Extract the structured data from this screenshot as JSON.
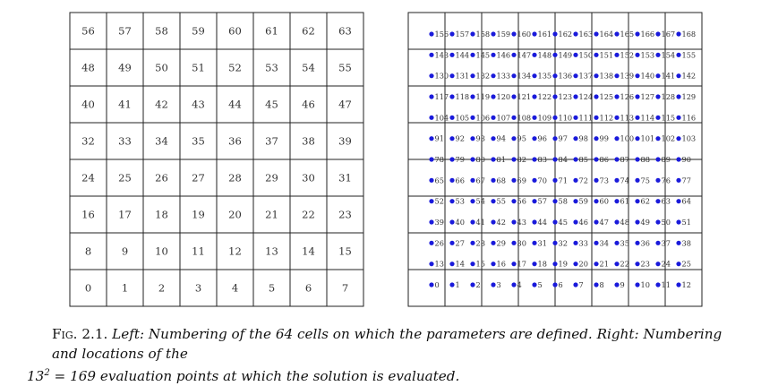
{
  "left_grid": {
    "rows": 8,
    "cols": 8,
    "labels": [
      [
        "56",
        "57",
        "58",
        "59",
        "60",
        "61",
        "62",
        "63"
      ],
      [
        "48",
        "49",
        "50",
        "51",
        "52",
        "53",
        "54",
        "55"
      ],
      [
        "40",
        "41",
        "42",
        "43",
        "44",
        "45",
        "46",
        "47"
      ],
      [
        "32",
        "33",
        "34",
        "35",
        "36",
        "37",
        "38",
        "39"
      ],
      [
        "24",
        "25",
        "26",
        "27",
        "28",
        "29",
        "30",
        "31"
      ],
      [
        "16",
        "17",
        "18",
        "19",
        "20",
        "21",
        "22",
        "23"
      ],
      [
        "8",
        "9",
        "10",
        "11",
        "12",
        "13",
        "14",
        "15"
      ],
      [
        "0",
        "1",
        "2",
        "3",
        "4",
        "5",
        "6",
        "7"
      ]
    ]
  },
  "right_grid": {
    "cells": 8,
    "points_per_side": 13,
    "point_color": "#1a1adb",
    "point_labels": [
      [
        "156",
        "157",
        "158",
        "159",
        "160",
        "161",
        "162",
        "163",
        "164",
        "165",
        "166",
        "167",
        "168"
      ],
      [
        "143",
        "144",
        "145",
        "146",
        "147",
        "148",
        "149",
        "150",
        "151",
        "152",
        "153",
        "154",
        "155"
      ],
      [
        "130",
        "131",
        "132",
        "133",
        "134",
        "135",
        "136",
        "137",
        "138",
        "139",
        "140",
        "141",
        "142"
      ],
      [
        "117",
        "118",
        "119",
        "120",
        "121",
        "122",
        "123",
        "124",
        "125",
        "126",
        "127",
        "128",
        "129"
      ],
      [
        "104",
        "105",
        "106",
        "107",
        "108",
        "109",
        "110",
        "111",
        "112",
        "113",
        "114",
        "115",
        "116"
      ],
      [
        "91",
        "92",
        "93",
        "94",
        "95",
        "96",
        "97",
        "98",
        "99",
        "100",
        "101",
        "102",
        "103"
      ],
      [
        "78",
        "79",
        "80",
        "81",
        "82",
        "83",
        "84",
        "85",
        "86",
        "87",
        "88",
        "89",
        "90"
      ],
      [
        "65",
        "66",
        "67",
        "68",
        "69",
        "70",
        "71",
        "72",
        "73",
        "74",
        "75",
        "76",
        "77"
      ],
      [
        "52",
        "53",
        "54",
        "55",
        "56",
        "57",
        "58",
        "59",
        "60",
        "61",
        "62",
        "63",
        "64"
      ],
      [
        "39",
        "40",
        "41",
        "42",
        "43",
        "44",
        "45",
        "46",
        "47",
        "48",
        "49",
        "50",
        "51"
      ],
      [
        "26",
        "27",
        "28",
        "29",
        "30",
        "31",
        "32",
        "33",
        "34",
        "35",
        "36",
        "37",
        "38"
      ],
      [
        "13",
        "14",
        "15",
        "16",
        "17",
        "18",
        "19",
        "20",
        "21",
        "22",
        "23",
        "24",
        "25"
      ],
      [
        "0",
        "1",
        "2",
        "3",
        "4",
        "5",
        "6",
        "7",
        "8",
        "9",
        "10",
        "11",
        "12"
      ]
    ]
  },
  "caption": {
    "label": "Fig. 2.1.",
    "left_heading": "Left:",
    "left_text": "Numbering of the 64 cells on which the parameters are defined.",
    "right_heading": "Right:",
    "right_text_1": "Numbering and locations of the",
    "math_base": "13",
    "math_exp": "2",
    "math_rest": " = 169",
    "right_text_2": "evaluation points at which the solution is evaluated."
  }
}
